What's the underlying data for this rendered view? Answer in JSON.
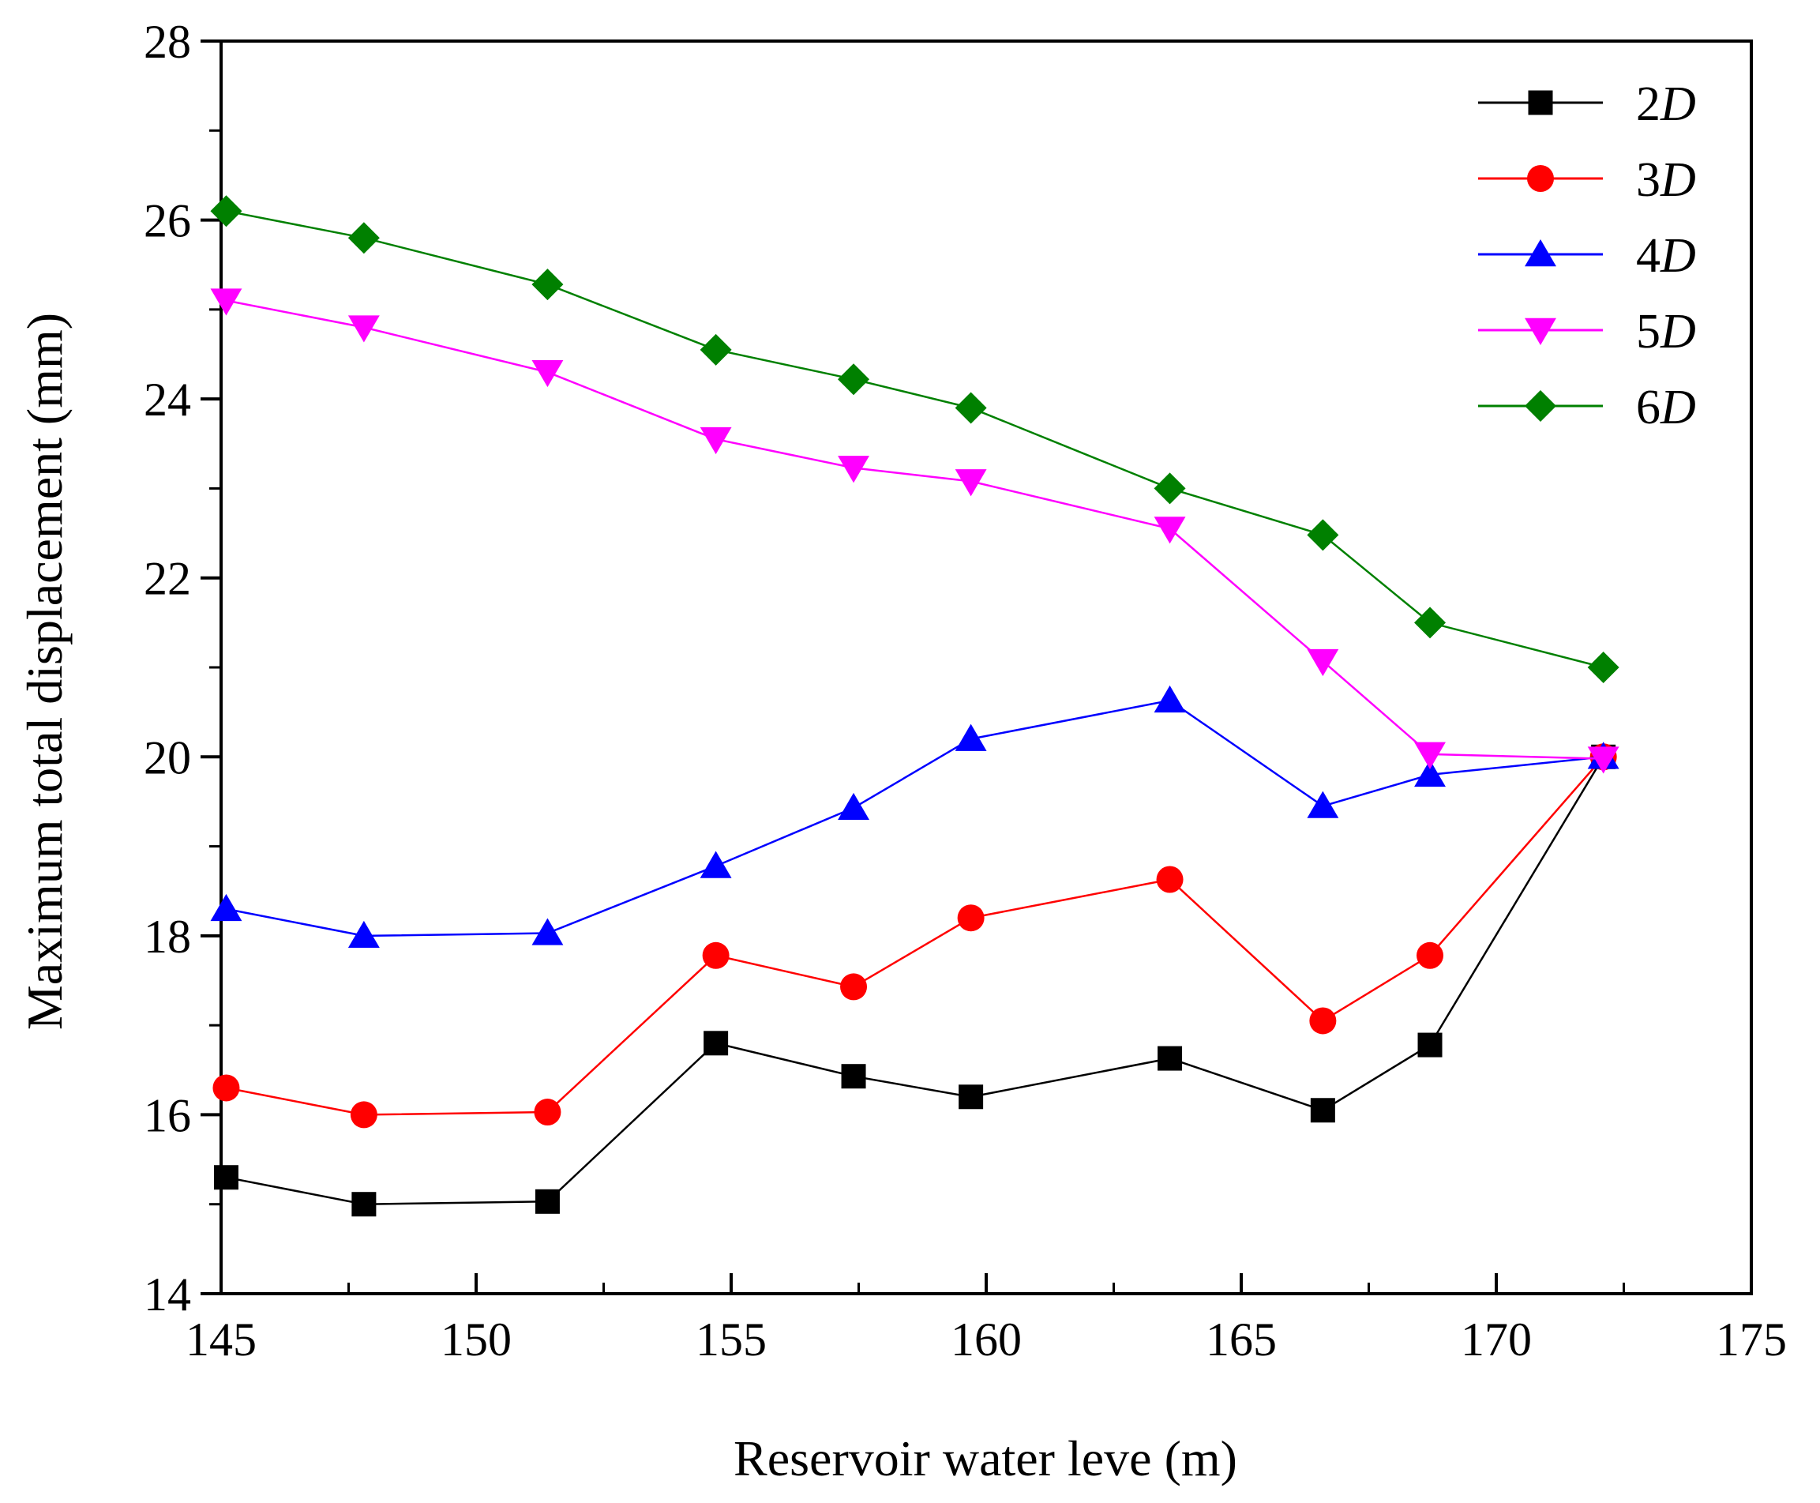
{
  "chart_data": {
    "type": "line",
    "title": "",
    "xlabel": "Reservoir water leve (m)",
    "ylabel": "Maximum total displacement (mm)",
    "xlim": [
      145,
      175
    ],
    "ylim": [
      14,
      28
    ],
    "x_major_ticks": [
      145,
      150,
      155,
      160,
      165,
      170,
      175
    ],
    "x_tick_labels": [
      "145",
      "150",
      "155",
      "160",
      "165",
      "170",
      "175"
    ],
    "x_minor_ticks": [
      147.5,
      152.5,
      157.5,
      162.5,
      167.5,
      172.5
    ],
    "y_major_ticks": [
      14,
      16,
      18,
      20,
      22,
      24,
      26,
      28
    ],
    "y_tick_labels": [
      "14",
      "16",
      "18",
      "20",
      "22",
      "24",
      "26",
      "28"
    ],
    "y_minor_ticks": [
      15,
      17,
      19,
      21,
      23,
      25,
      27
    ],
    "grid": false,
    "legend_position": "top-right",
    "x": [
      145.1,
      147.8,
      151.4,
      154.7,
      157.4,
      159.7,
      163.6,
      166.6,
      168.7,
      172.1
    ],
    "series": [
      {
        "name": "2D",
        "name_num": "2",
        "name_var": "D",
        "color": "#000000",
        "marker": "square",
        "values": [
          15.3,
          15.0,
          15.03,
          16.8,
          16.43,
          16.2,
          16.63,
          16.05,
          16.78,
          20.0
        ]
      },
      {
        "name": "3D",
        "name_num": "3",
        "name_var": "D",
        "color": "#ff0000",
        "marker": "circle",
        "values": [
          16.3,
          16.0,
          16.03,
          17.78,
          17.43,
          18.2,
          18.63,
          17.05,
          17.78,
          20.0
        ]
      },
      {
        "name": "4D",
        "name_num": "4",
        "name_var": "D",
        "color": "#0000ff",
        "marker": "triangle-up",
        "values": [
          18.3,
          18.0,
          18.03,
          18.78,
          19.43,
          20.2,
          20.63,
          19.45,
          19.8,
          20.0
        ]
      },
      {
        "name": "5D",
        "name_num": "5",
        "name_var": "D",
        "color": "#ff00ff",
        "marker": "triangle-down",
        "values": [
          25.1,
          24.8,
          24.3,
          23.55,
          23.23,
          23.08,
          22.55,
          21.07,
          20.03,
          19.98
        ]
      },
      {
        "name": "6D",
        "name_num": "6",
        "name_var": "D",
        "color": "#008000",
        "marker": "diamond",
        "values": [
          26.1,
          25.8,
          25.28,
          24.55,
          24.22,
          23.9,
          23.0,
          22.48,
          21.5,
          21.0
        ]
      }
    ]
  }
}
